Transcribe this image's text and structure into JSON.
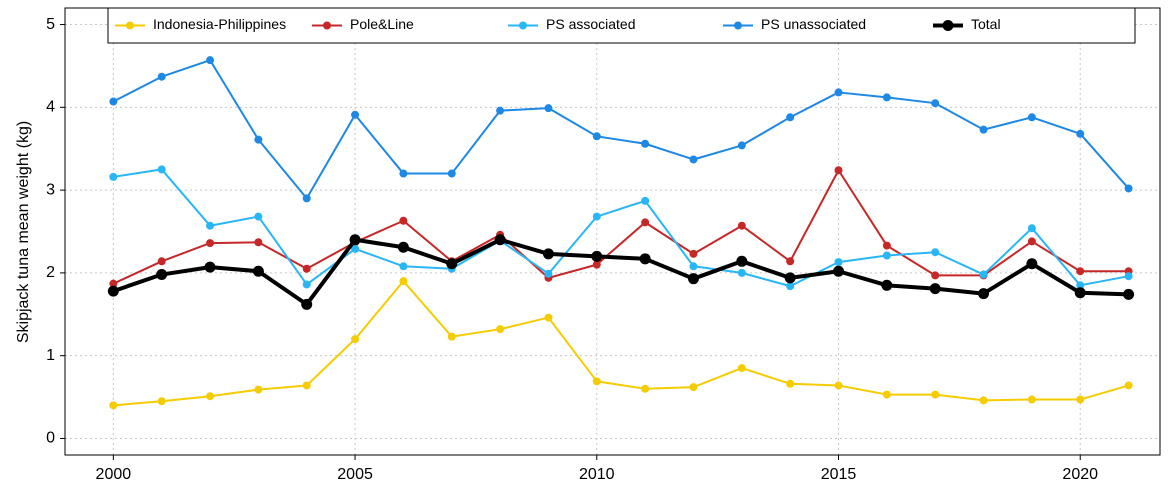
{
  "chart_data": {
    "type": "line",
    "y_label": "Skipjack tuna mean weight (kg)",
    "x": [
      2000,
      2001,
      2002,
      2003,
      2004,
      2005,
      2006,
      2007,
      2008,
      2009,
      2010,
      2011,
      2012,
      2013,
      2014,
      2015,
      2016,
      2017,
      2018,
      2019,
      2020,
      2021
    ],
    "series": [
      {
        "name": "Indonesia-Philippines",
        "color": "#f5cc00",
        "values": [
          0.4,
          0.45,
          0.51,
          0.59,
          0.64,
          1.2,
          1.9,
          1.23,
          1.32,
          1.46,
          0.69,
          0.6,
          0.62,
          0.85,
          0.66,
          0.64,
          0.53,
          0.53,
          0.46,
          0.47,
          0.47,
          0.64
        ]
      },
      {
        "name": "Pole&Line",
        "color": "#c62828",
        "values": [
          1.87,
          2.14,
          2.36,
          2.37,
          2.05,
          2.37,
          2.63,
          2.14,
          2.46,
          1.94,
          2.1,
          2.61,
          2.23,
          2.57,
          2.14,
          3.24,
          2.33,
          1.97,
          1.97,
          2.38,
          2.02,
          2.02
        ]
      },
      {
        "name": "PS associated",
        "color": "#29b6f6",
        "values": [
          3.16,
          3.25,
          2.57,
          2.68,
          1.86,
          2.29,
          2.08,
          2.05,
          2.39,
          1.99,
          2.68,
          2.87,
          2.08,
          2.0,
          1.84,
          2.13,
          2.21,
          2.25,
          1.98,
          2.54,
          1.85,
          1.96
        ]
      },
      {
        "name": "PS unassociated",
        "color": "#1e88e5",
        "values": [
          4.07,
          4.37,
          4.57,
          3.61,
          2.9,
          3.91,
          3.2,
          3.2,
          3.96,
          3.99,
          3.65,
          3.56,
          3.37,
          3.54,
          3.88,
          4.18,
          4.12,
          4.05,
          3.73,
          3.88,
          3.68,
          3.02
        ]
      },
      {
        "name": "Total",
        "color": "#000000",
        "values": [
          1.78,
          1.98,
          2.07,
          2.02,
          1.62,
          2.4,
          2.31,
          2.11,
          2.4,
          2.23,
          2.2,
          2.17,
          1.93,
          2.14,
          1.94,
          2.02,
          1.85,
          1.81,
          1.75,
          2.11,
          1.76,
          1.74
        ]
      }
    ],
    "xlim": [
      1999.0,
      2021.65
    ],
    "xticks": [
      2000,
      2005,
      2010,
      2015,
      2020
    ],
    "ylim": [
      -0.2,
      5.2
    ],
    "yticks": [
      0,
      1,
      2,
      3,
      4,
      5
    ],
    "grid": true,
    "legend": "top"
  }
}
